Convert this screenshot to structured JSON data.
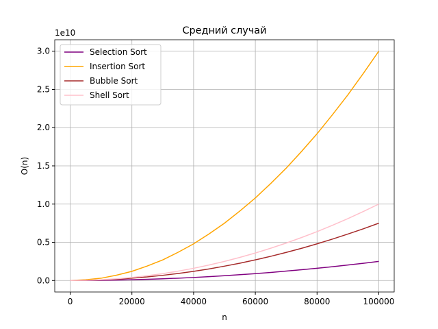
{
  "chart_data": {
    "type": "line",
    "title": "Средний случай",
    "xlabel": "n",
    "ylabel": "O(n)",
    "y_offset_label": "1e10",
    "x": [
      0,
      5000,
      10000,
      15000,
      20000,
      25000,
      30000,
      35000,
      40000,
      45000,
      50000,
      55000,
      60000,
      65000,
      70000,
      75000,
      80000,
      85000,
      90000,
      95000,
      100000
    ],
    "series": [
      {
        "name": "Selection Sort",
        "color": "purple",
        "values": [
          0,
          0.001,
          0.003,
          0.006,
          0.01,
          0.016,
          0.023,
          0.031,
          0.04,
          0.051,
          0.063,
          0.076,
          0.09,
          0.106,
          0.123,
          0.141,
          0.16,
          0.181,
          0.203,
          0.226,
          0.25
        ]
      },
      {
        "name": "Insertion Sort",
        "color": "orange",
        "values": [
          0,
          0.01,
          0.03,
          0.07,
          0.12,
          0.19,
          0.27,
          0.37,
          0.48,
          0.61,
          0.75,
          0.91,
          1.08,
          1.27,
          1.47,
          1.69,
          1.92,
          2.17,
          2.43,
          2.71,
          3.0
        ]
      },
      {
        "name": "Bubble Sort",
        "color": "brown",
        "values": [
          0,
          0.002,
          0.008,
          0.017,
          0.03,
          0.047,
          0.068,
          0.092,
          0.12,
          0.152,
          0.188,
          0.227,
          0.27,
          0.317,
          0.368,
          0.422,
          0.48,
          0.542,
          0.608,
          0.677,
          0.75
        ]
      },
      {
        "name": "Shell Sort",
        "color": "pink",
        "values": [
          0,
          0.003,
          0.01,
          0.023,
          0.04,
          0.063,
          0.09,
          0.123,
          0.16,
          0.203,
          0.25,
          0.303,
          0.36,
          0.423,
          0.49,
          0.563,
          0.64,
          0.723,
          0.81,
          0.903,
          1.0
        ]
      }
    ],
    "xlim": [
      -5000,
      105000
    ],
    "ylim": [
      -0.15,
      3.15
    ],
    "xticks": [
      0,
      20000,
      40000,
      60000,
      80000,
      100000
    ],
    "yticks": [
      {
        "value": 0,
        "label": "0.0"
      },
      {
        "value": 0.5,
        "label": "0.5"
      },
      {
        "value": 1,
        "label": "1.0"
      },
      {
        "value": 1.5,
        "label": "1.5"
      },
      {
        "value": 2,
        "label": "2.0"
      },
      {
        "value": 2.5,
        "label": "2.5"
      },
      {
        "value": 3,
        "label": "3.0"
      }
    ],
    "grid": true,
    "legend": "upper left"
  }
}
